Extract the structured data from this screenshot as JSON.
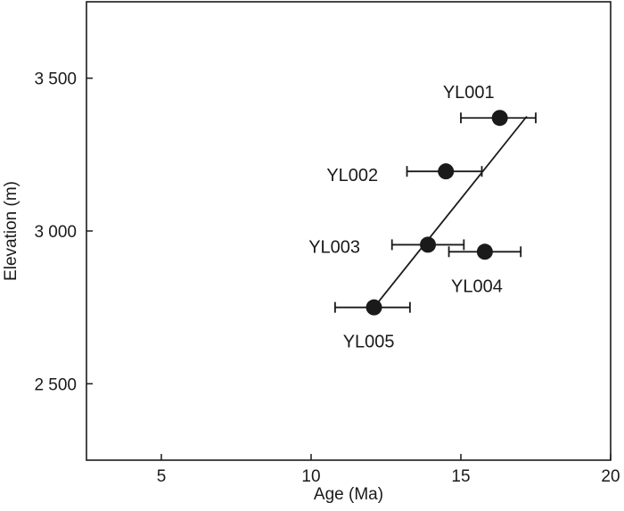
{
  "chart_data": {
    "type": "scatter",
    "xlabel": "Age (Ma)",
    "ylabel": "Elevation (m)",
    "xlim": [
      2.5,
      20
    ],
    "ylim": [
      2250,
      3750
    ],
    "x_ticks": [
      5,
      10,
      15,
      20
    ],
    "x_tick_labels": [
      "5",
      "10",
      "15",
      "20"
    ],
    "y_ticks": [
      2500,
      3000,
      3500
    ],
    "y_tick_labels": [
      "2 500",
      "3 000",
      "3 500"
    ],
    "grid": false,
    "points": [
      {
        "label": "YL001",
        "age": 16.3,
        "age_err_low": 15.0,
        "age_err_high": 17.5,
        "elevation": 3370
      },
      {
        "label": "YL002",
        "age": 14.5,
        "age_err_low": 13.2,
        "age_err_high": 15.7,
        "elevation": 3195
      },
      {
        "label": "YL003",
        "age": 13.9,
        "age_err_low": 12.7,
        "age_err_high": 15.1,
        "elevation": 2955
      },
      {
        "label": "YL004",
        "age": 15.8,
        "age_err_low": 14.6,
        "age_err_high": 17.0,
        "elevation": 2932
      },
      {
        "label": "YL005",
        "age": 12.1,
        "age_err_low": 10.8,
        "age_err_high": 13.3,
        "elevation": 2750
      }
    ],
    "trend_line": [
      {
        "age": 12.1,
        "elevation": 2750
      },
      {
        "age": 17.2,
        "elevation": 3375
      }
    ]
  }
}
